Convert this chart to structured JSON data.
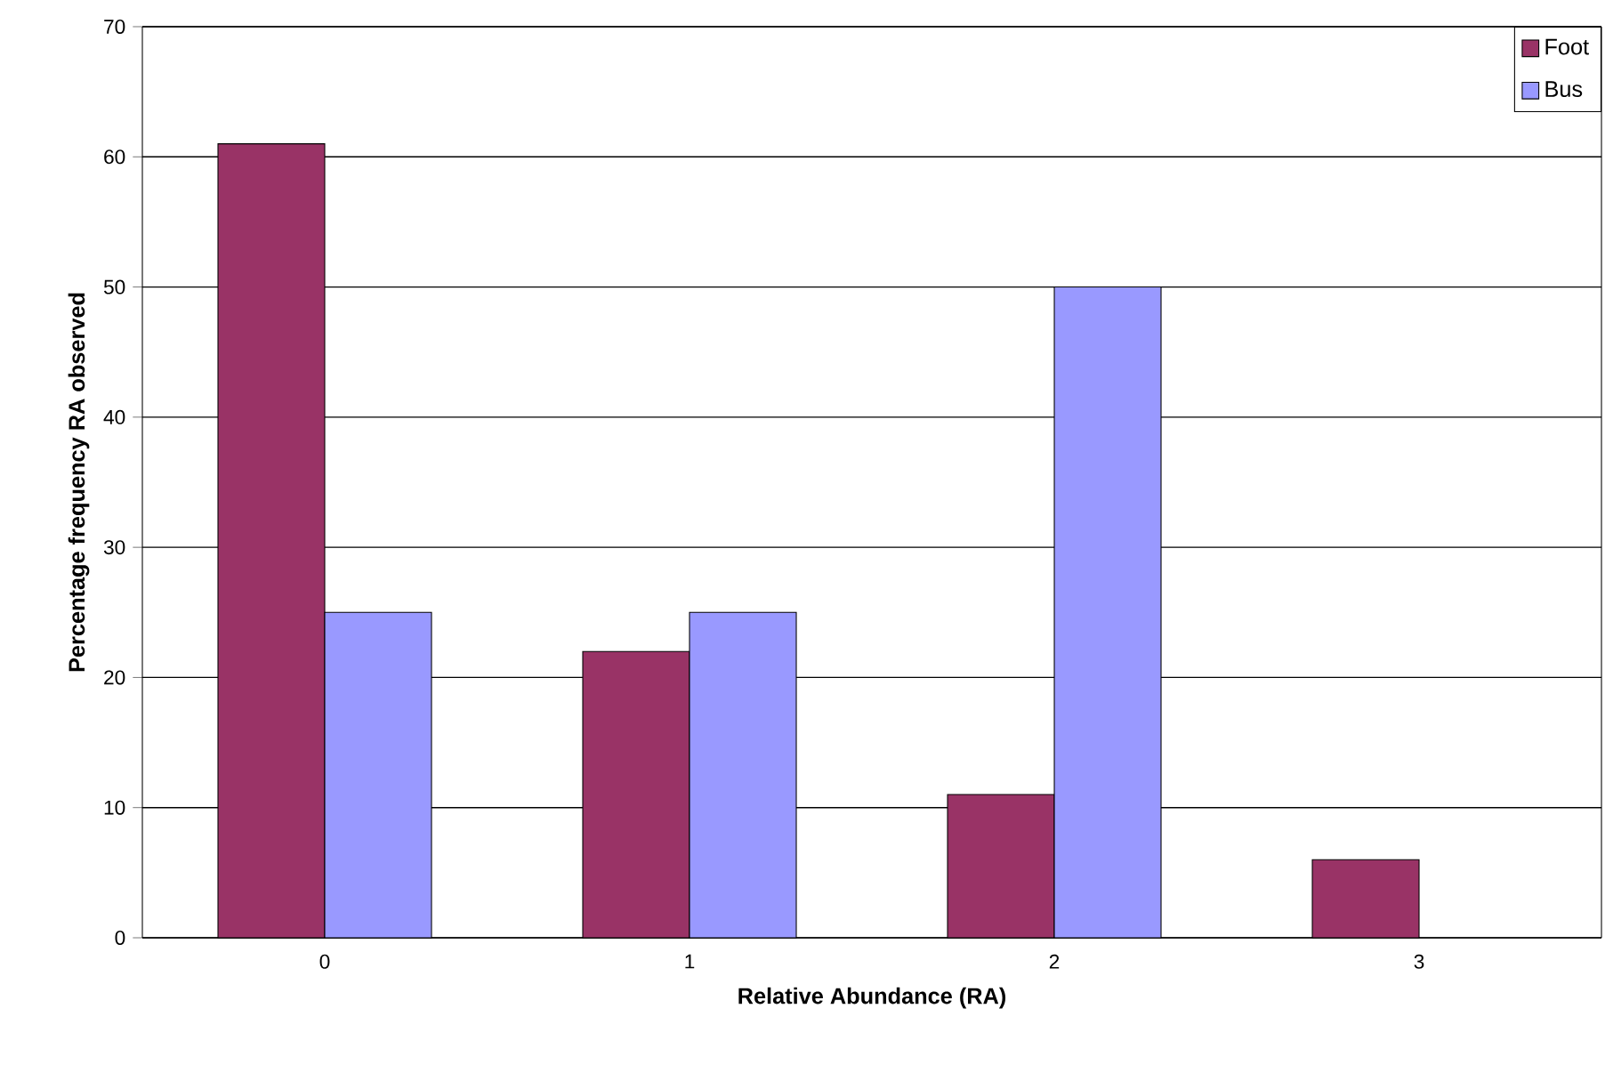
{
  "chart_data": {
    "type": "bar",
    "xlabel": "Relative Abundance (RA)",
    "ylabel": "Percentage frequency RA observed",
    "categories": [
      "0",
      "1",
      "2",
      "3"
    ],
    "series": [
      {
        "name": "Foot",
        "color": "#993366",
        "values": [
          61,
          22,
          11,
          6
        ]
      },
      {
        "name": "Bus",
        "color": "#9999ff",
        "values": [
          25,
          25,
          50,
          null
        ]
      }
    ],
    "ylim": [
      0,
      70
    ],
    "yticks": [
      0,
      10,
      20,
      30,
      40,
      50,
      60,
      70
    ],
    "grid": "y",
    "legend": "top right"
  }
}
